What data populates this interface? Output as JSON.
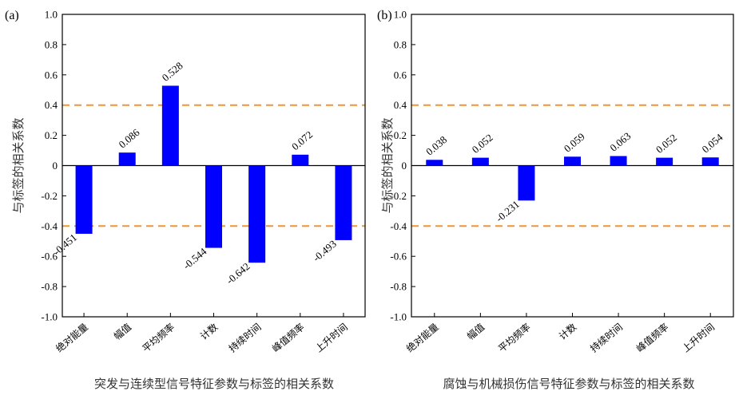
{
  "chart_data": [
    {
      "type": "bar",
      "panel_label": "(a)",
      "categories": [
        "绝对能量",
        "幅值",
        "平均频率",
        "计数",
        "持续时间",
        "峰值频率",
        "上升时间"
      ],
      "values": [
        -0.451,
        0.086,
        0.528,
        -0.544,
        -0.642,
        0.072,
        -0.493
      ],
      "value_labels": [
        "-0.451",
        "0.086",
        "0.528",
        "-0.544",
        "-0.642",
        "0.072",
        "-0.493"
      ],
      "xlabel": "突发与连续型信号特征参数与标签的相关系数",
      "ylabel": "与标签的相关系数",
      "ylim": [
        -1.0,
        1.0
      ],
      "yticks": [
        "-1.0",
        "-0.8",
        "-0.6",
        "-0.4",
        "-0.2",
        "0",
        "0.2",
        "0.4",
        "0.6",
        "0.8",
        "1.0"
      ],
      "reference_lines": [
        0.4,
        -0.4
      ],
      "bar_color": "#0000ff",
      "reference_color": "#f0962e",
      "grid": false
    },
    {
      "type": "bar",
      "panel_label": "(b)",
      "categories": [
        "绝对能量",
        "幅值",
        "平均频率",
        "计数",
        "持续时间",
        "峰值频率",
        "上升时间"
      ],
      "values": [
        0.038,
        0.052,
        -0.231,
        0.059,
        0.063,
        0.052,
        0.054
      ],
      "value_labels": [
        "0.038",
        "0.052",
        "-0.231",
        "0.059",
        "0.063",
        "0.052",
        "0.054"
      ],
      "xlabel": "腐蚀与机械损伤信号特征参数与标签的相关系数",
      "ylabel": "与标签的相关系数",
      "ylim": [
        -1.0,
        1.0
      ],
      "yticks": [
        "-1.0",
        "-0.8",
        "-0.6",
        "-0.4",
        "-0.2",
        "0",
        "0.2",
        "0.4",
        "0.6",
        "0.8",
        "1.0"
      ],
      "reference_lines": [
        0.4,
        -0.4
      ],
      "bar_color": "#0000ff",
      "reference_color": "#f0962e",
      "grid": false
    }
  ]
}
